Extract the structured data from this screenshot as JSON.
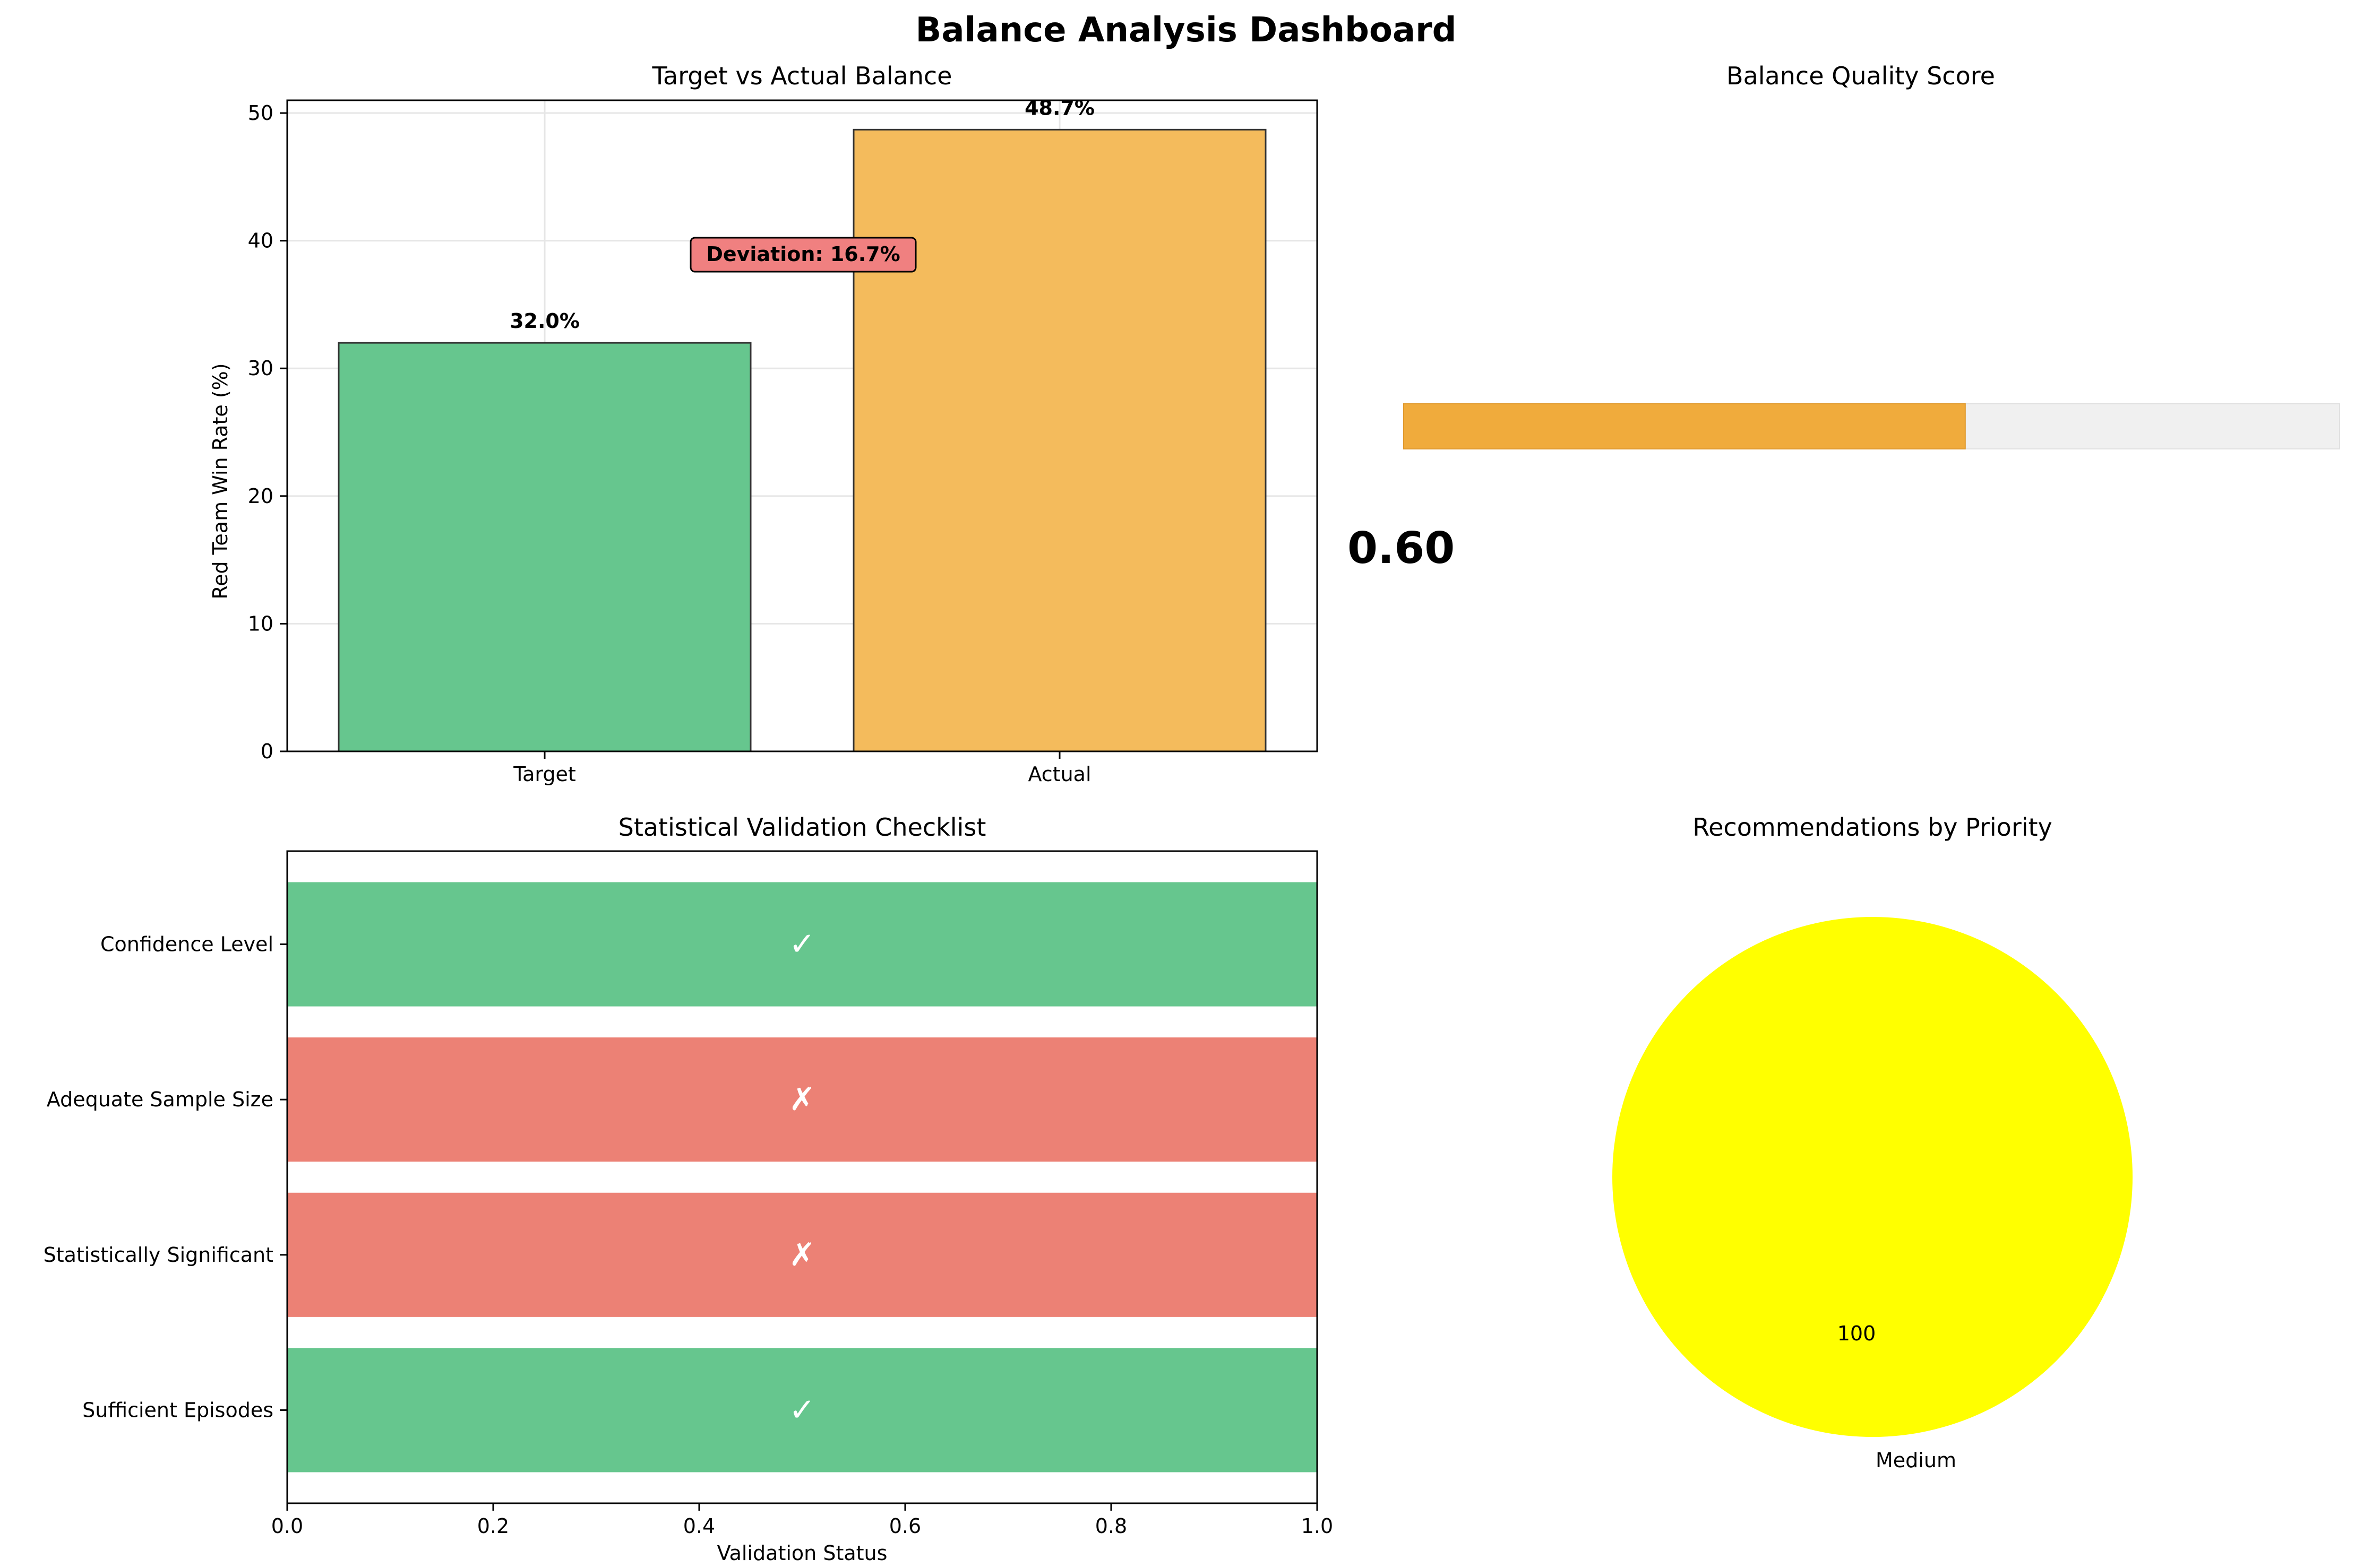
{
  "figure": {
    "title": "Balance Analysis Dashboard"
  },
  "colors": {
    "green": "#66c68e",
    "orange": "#f4bb5c",
    "red": "#ec8175",
    "gauge_fill": "#f0ab3c",
    "gauge_bg": "#f0f0f0",
    "deviation_box": "#f08080",
    "pie_yellow": "#ffff00",
    "grid": "#e6e6e6"
  },
  "chart_data": [
    {
      "type": "bar",
      "title": "Target vs Actual Balance",
      "ylabel": "Red Team Win Rate (%)",
      "categories": [
        "Target",
        "Actual"
      ],
      "values": [
        32.0,
        48.7
      ],
      "value_labels": [
        "32.0%",
        "48.7%"
      ],
      "ylim": [
        0,
        51
      ],
      "yticks": [
        0,
        10,
        20,
        30,
        40,
        50
      ],
      "grid": true,
      "annotation": "Deviation: 16.7%"
    },
    {
      "type": "bar",
      "orientation": "horizontal",
      "title": "Balance Quality Score",
      "value": 0.6,
      "value_label": "0.60",
      "range": [
        0,
        1
      ]
    },
    {
      "type": "bar",
      "orientation": "horizontal",
      "title": "Statistical Validation Checklist",
      "xlabel": "Validation Status",
      "categories": [
        "Confidence Level",
        "Adequate Sample Size",
        "Statistically Significant",
        "Sufficient Episodes"
      ],
      "values": [
        1,
        1,
        1,
        1
      ],
      "status": [
        true,
        false,
        false,
        true
      ],
      "marks": [
        "✓",
        "✗",
        "✗",
        "✓"
      ],
      "xlim": [
        0,
        1
      ],
      "xticks": [
        "0.0",
        "0.2",
        "0.4",
        "0.6",
        "0.8",
        "1.0"
      ]
    },
    {
      "type": "pie",
      "title": "Recommendations by Priority",
      "slices": [
        {
          "label": "Medium",
          "value": 100,
          "value_label": "100"
        }
      ]
    }
  ]
}
